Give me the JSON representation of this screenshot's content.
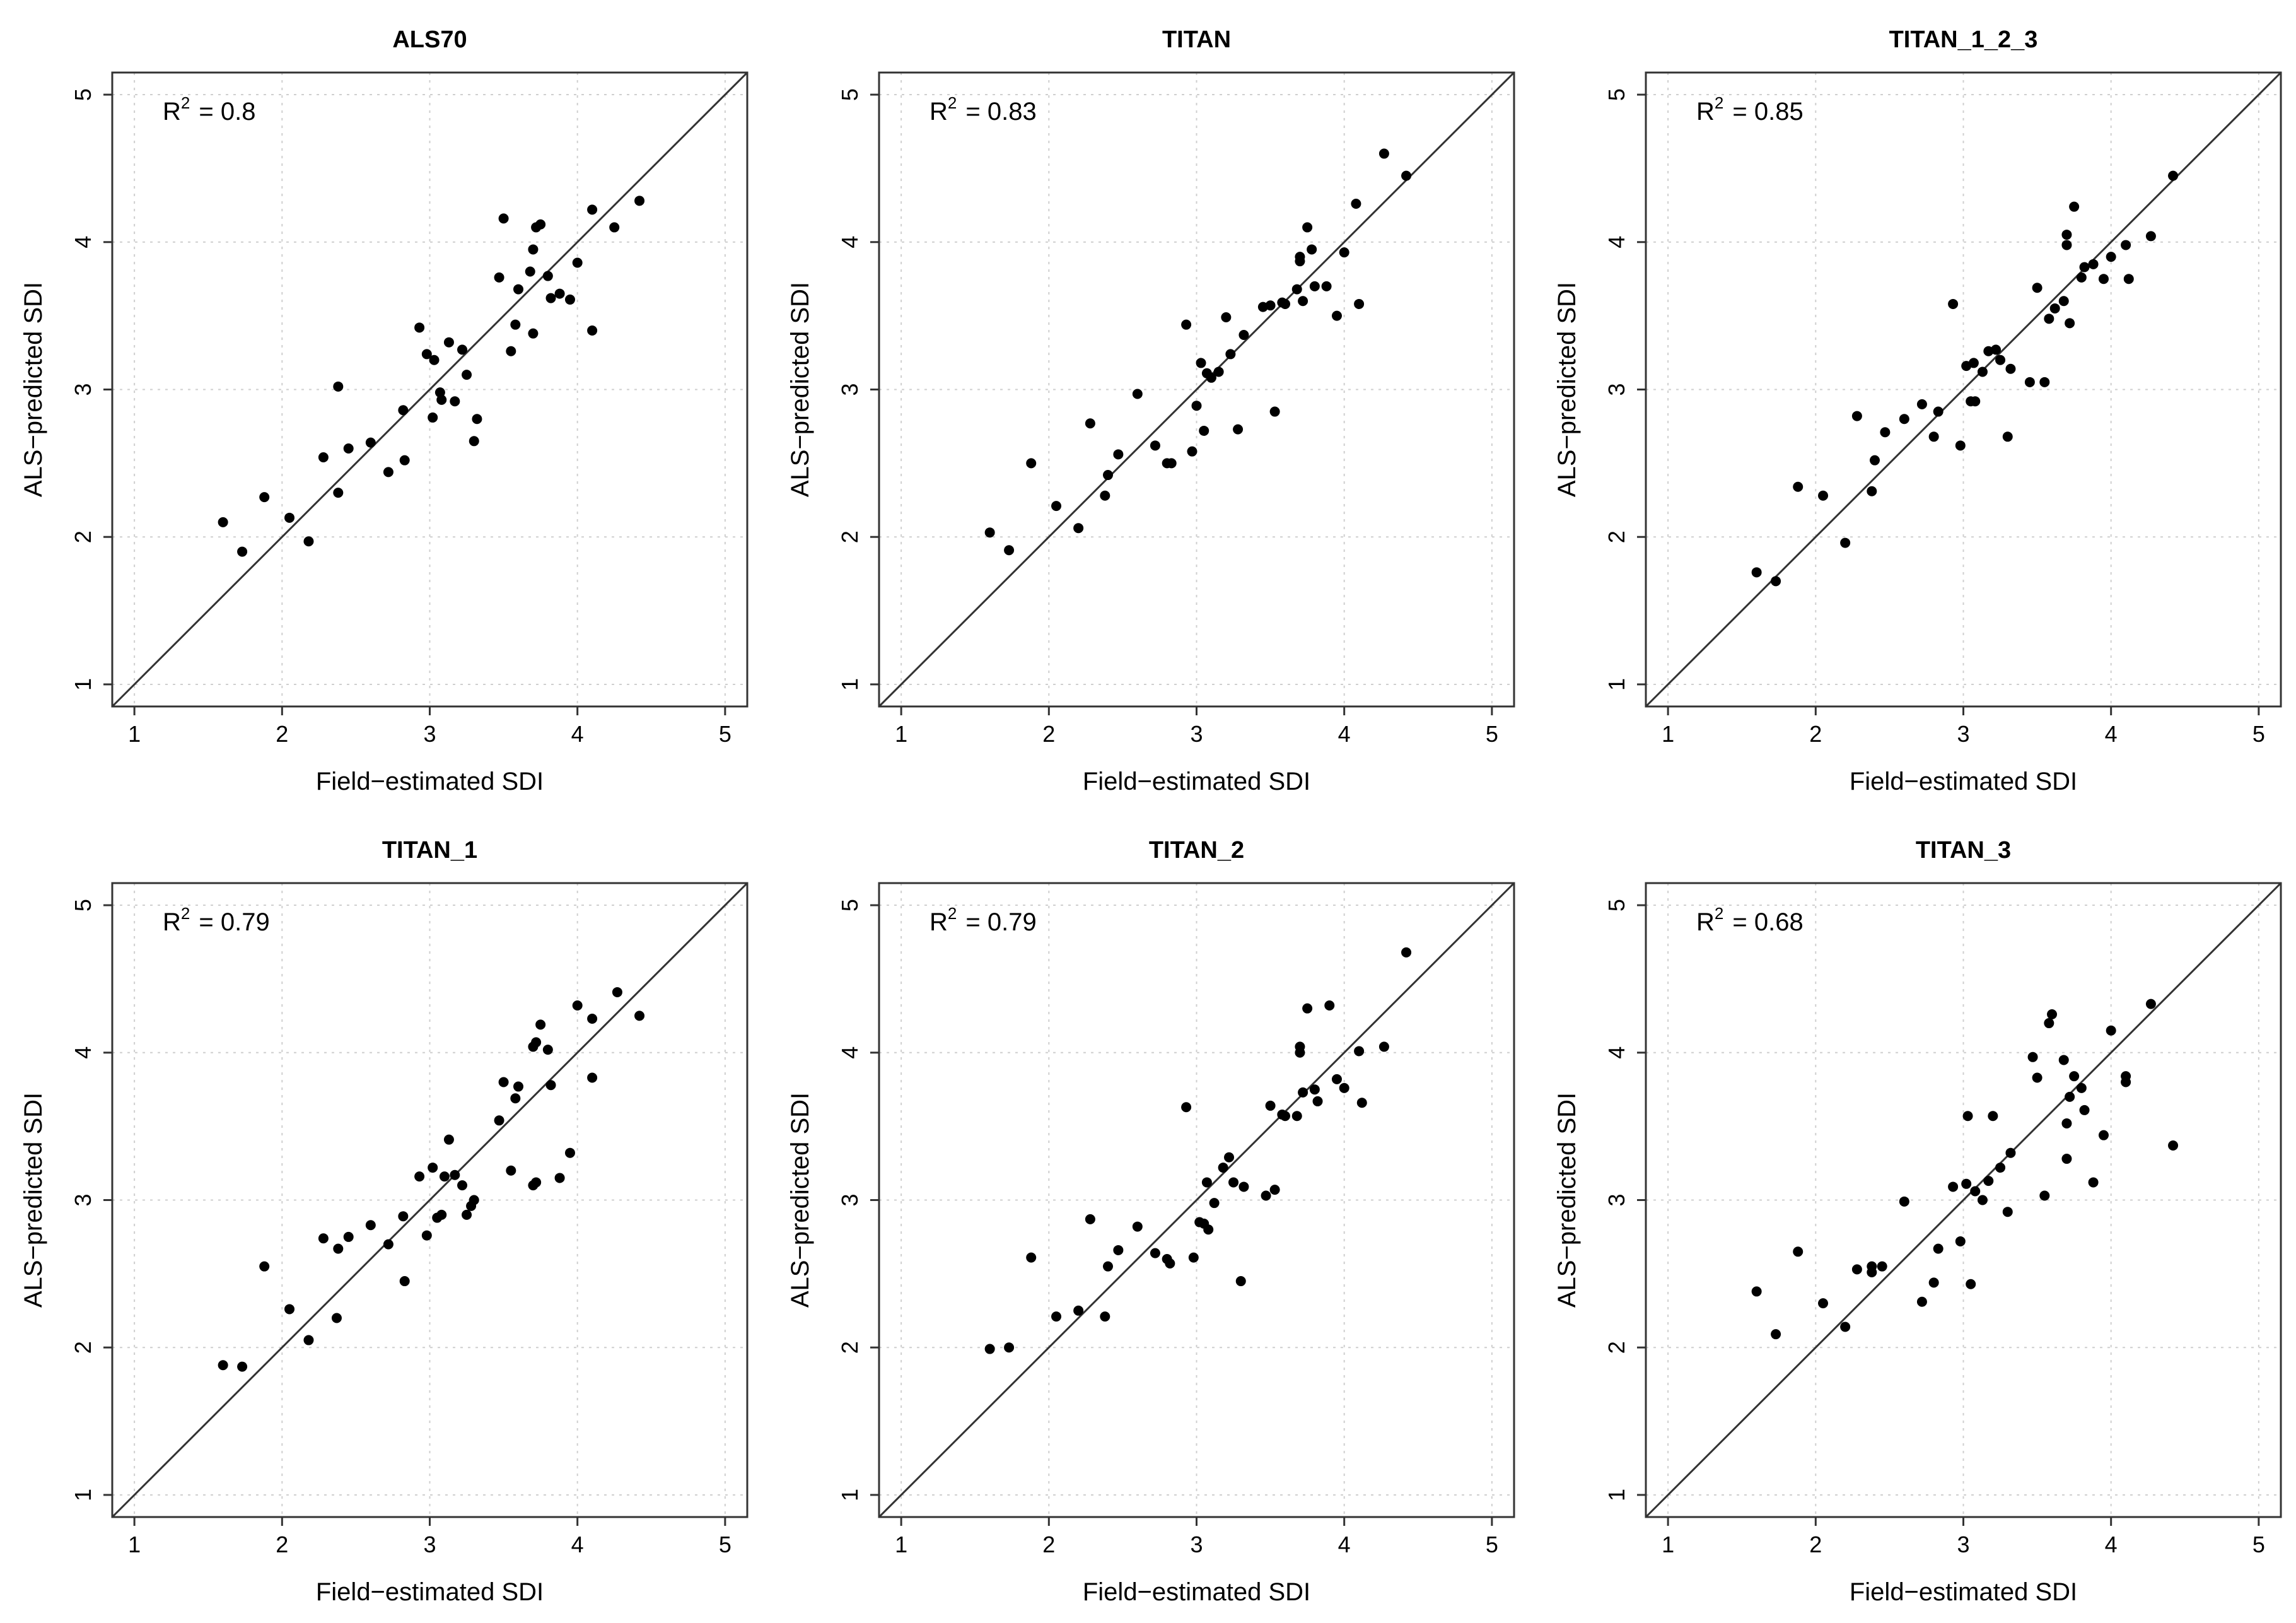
{
  "chart_data": [
    {
      "type": "scatter",
      "title": "ALS70",
      "xlabel": "Field−estimated SDI",
      "ylabel": "ALS−predicted SDI",
      "xlim": [
        0.85,
        5.15
      ],
      "ylim": [
        0.85,
        5.15
      ],
      "xticks": [
        "1",
        "2",
        "3",
        "4",
        "5"
      ],
      "yticks": [
        "1",
        "2",
        "3",
        "4",
        "5"
      ],
      "grid": true,
      "reference_line": "1:1",
      "r2_label": "R",
      "r2_sup": "2",
      "r2_value": "=  0.8",
      "points": [
        [
          1.6,
          2.1
        ],
        [
          1.73,
          1.9
        ],
        [
          1.88,
          2.27
        ],
        [
          2.05,
          2.13
        ],
        [
          2.18,
          1.97
        ],
        [
          2.28,
          2.54
        ],
        [
          2.38,
          2.3
        ],
        [
          2.38,
          3.02
        ],
        [
          2.45,
          2.6
        ],
        [
          2.6,
          2.64
        ],
        [
          2.72,
          2.44
        ],
        [
          2.82,
          2.86
        ],
        [
          2.83,
          2.52
        ],
        [
          2.93,
          3.42
        ],
        [
          2.98,
          3.24
        ],
        [
          3.02,
          2.81
        ],
        [
          3.03,
          3.2
        ],
        [
          3.07,
          2.98
        ],
        [
          3.08,
          2.93
        ],
        [
          3.13,
          3.32
        ],
        [
          3.17,
          2.92
        ],
        [
          3.22,
          3.27
        ],
        [
          3.25,
          3.1
        ],
        [
          3.3,
          2.65
        ],
        [
          3.32,
          2.8
        ],
        [
          3.47,
          3.76
        ],
        [
          3.5,
          4.16
        ],
        [
          3.55,
          3.26
        ],
        [
          3.58,
          3.44
        ],
        [
          3.6,
          3.68
        ],
        [
          3.68,
          3.8
        ],
        [
          3.7,
          3.38
        ],
        [
          3.7,
          3.95
        ],
        [
          3.72,
          4.1
        ],
        [
          3.75,
          4.12
        ],
        [
          3.8,
          3.77
        ],
        [
          3.82,
          3.62
        ],
        [
          3.88,
          3.65
        ],
        [
          3.95,
          3.61
        ],
        [
          4.0,
          3.86
        ],
        [
          4.1,
          3.4
        ],
        [
          4.1,
          4.22
        ],
        [
          4.25,
          4.1
        ],
        [
          4.42,
          4.28
        ]
      ]
    },
    {
      "type": "scatter",
      "title": "TITAN",
      "xlabel": "Field−estimated SDI",
      "ylabel": "ALS−predicted SDI",
      "xlim": [
        0.85,
        5.15
      ],
      "ylim": [
        0.85,
        5.15
      ],
      "xticks": [
        "1",
        "2",
        "3",
        "4",
        "5"
      ],
      "yticks": [
        "1",
        "2",
        "3",
        "4",
        "5"
      ],
      "grid": true,
      "reference_line": "1:1",
      "r2_label": "R",
      "r2_sup": "2",
      "r2_value": "=  0.83",
      "points": [
        [
          1.6,
          2.03
        ],
        [
          1.73,
          1.91
        ],
        [
          1.88,
          2.5
        ],
        [
          2.05,
          2.21
        ],
        [
          2.2,
          2.06
        ],
        [
          2.28,
          2.77
        ],
        [
          2.38,
          2.28
        ],
        [
          2.4,
          2.42
        ],
        [
          2.47,
          2.56
        ],
        [
          2.6,
          2.97
        ],
        [
          2.72,
          2.62
        ],
        [
          2.8,
          2.5
        ],
        [
          2.83,
          2.5
        ],
        [
          2.93,
          3.44
        ],
        [
          2.97,
          2.58
        ],
        [
          3.0,
          2.89
        ],
        [
          3.03,
          3.18
        ],
        [
          3.05,
          2.72
        ],
        [
          3.07,
          3.11
        ],
        [
          3.1,
          3.08
        ],
        [
          3.15,
          3.12
        ],
        [
          3.2,
          3.49
        ],
        [
          3.23,
          3.24
        ],
        [
          3.28,
          2.73
        ],
        [
          3.32,
          3.37
        ],
        [
          3.45,
          3.56
        ],
        [
          3.5,
          3.57
        ],
        [
          3.53,
          2.85
        ],
        [
          3.58,
          3.59
        ],
        [
          3.6,
          3.58
        ],
        [
          3.68,
          3.68
        ],
        [
          3.7,
          3.9
        ],
        [
          3.7,
          3.87
        ],
        [
          3.72,
          3.6
        ],
        [
          3.75,
          4.1
        ],
        [
          3.8,
          3.7
        ],
        [
          3.88,
          3.7
        ],
        [
          3.95,
          3.5
        ],
        [
          4.0,
          3.93
        ],
        [
          4.08,
          4.26
        ],
        [
          4.1,
          3.58
        ],
        [
          4.27,
          4.6
        ],
        [
          4.42,
          4.45
        ],
        [
          3.78,
          3.95
        ]
      ]
    },
    {
      "type": "scatter",
      "title": "TITAN_1_2_3",
      "xlabel": "Field−estimated SDI",
      "ylabel": "ALS−predicted SDI",
      "xlim": [
        0.85,
        5.15
      ],
      "ylim": [
        0.85,
        5.15
      ],
      "xticks": [
        "1",
        "2",
        "3",
        "4",
        "5"
      ],
      "yticks": [
        "1",
        "2",
        "3",
        "4",
        "5"
      ],
      "grid": true,
      "reference_line": "1:1",
      "r2_label": "R",
      "r2_sup": "2",
      "r2_value": "=  0.85",
      "points": [
        [
          1.6,
          1.76
        ],
        [
          1.73,
          1.7
        ],
        [
          1.88,
          2.34
        ],
        [
          2.05,
          2.28
        ],
        [
          2.2,
          1.96
        ],
        [
          2.28,
          2.82
        ],
        [
          2.38,
          2.31
        ],
        [
          2.4,
          2.52
        ],
        [
          2.47,
          2.71
        ],
        [
          2.6,
          2.8
        ],
        [
          2.72,
          2.9
        ],
        [
          2.8,
          2.68
        ],
        [
          2.83,
          2.85
        ],
        [
          2.93,
          3.58
        ],
        [
          2.98,
          2.62
        ],
        [
          3.02,
          3.16
        ],
        [
          3.05,
          2.92
        ],
        [
          3.07,
          3.18
        ],
        [
          3.08,
          2.92
        ],
        [
          3.13,
          3.12
        ],
        [
          3.17,
          3.26
        ],
        [
          3.22,
          3.27
        ],
        [
          3.25,
          3.2
        ],
        [
          3.3,
          2.68
        ],
        [
          3.32,
          3.14
        ],
        [
          3.45,
          3.05
        ],
        [
          3.5,
          3.69
        ],
        [
          3.55,
          3.05
        ],
        [
          3.58,
          3.48
        ],
        [
          3.62,
          3.55
        ],
        [
          3.68,
          3.6
        ],
        [
          3.7,
          3.98
        ],
        [
          3.7,
          4.05
        ],
        [
          3.72,
          3.45
        ],
        [
          3.75,
          4.24
        ],
        [
          3.8,
          3.76
        ],
        [
          3.82,
          3.83
        ],
        [
          3.88,
          3.85
        ],
        [
          3.95,
          3.75
        ],
        [
          4.0,
          3.9
        ],
        [
          4.1,
          3.98
        ],
        [
          4.12,
          3.75
        ],
        [
          4.27,
          4.04
        ],
        [
          4.42,
          4.45
        ]
      ]
    },
    {
      "type": "scatter",
      "title": "TITAN_1",
      "xlabel": "Field−estimated SDI",
      "ylabel": "ALS−predicted SDI",
      "xlim": [
        0.85,
        5.15
      ],
      "ylim": [
        0.85,
        5.15
      ],
      "xticks": [
        "1",
        "2",
        "3",
        "4",
        "5"
      ],
      "yticks": [
        "1",
        "2",
        "3",
        "4",
        "5"
      ],
      "grid": true,
      "reference_line": "1:1",
      "r2_label": "R",
      "r2_sup": "2",
      "r2_value": "=  0.79",
      "points": [
        [
          1.6,
          1.88
        ],
        [
          1.73,
          1.87
        ],
        [
          1.88,
          2.55
        ],
        [
          2.05,
          2.26
        ],
        [
          2.18,
          2.05
        ],
        [
          2.28,
          2.74
        ],
        [
          2.37,
          2.2
        ],
        [
          2.38,
          2.67
        ],
        [
          2.45,
          2.75
        ],
        [
          2.6,
          2.83
        ],
        [
          2.72,
          2.7
        ],
        [
          2.82,
          2.89
        ],
        [
          2.83,
          2.45
        ],
        [
          2.93,
          3.16
        ],
        [
          2.98,
          2.76
        ],
        [
          3.02,
          3.22
        ],
        [
          3.05,
          2.88
        ],
        [
          3.08,
          2.9
        ],
        [
          3.1,
          3.16
        ],
        [
          3.13,
          3.41
        ],
        [
          3.17,
          3.17
        ],
        [
          3.22,
          3.1
        ],
        [
          3.25,
          2.9
        ],
        [
          3.3,
          3.0
        ],
        [
          3.28,
          2.96
        ],
        [
          3.47,
          3.54
        ],
        [
          3.5,
          3.8
        ],
        [
          3.55,
          3.2
        ],
        [
          3.58,
          3.69
        ],
        [
          3.6,
          3.77
        ],
        [
          3.7,
          4.04
        ],
        [
          3.7,
          3.1
        ],
        [
          3.72,
          4.07
        ],
        [
          3.72,
          3.12
        ],
        [
          3.75,
          4.19
        ],
        [
          3.8,
          4.02
        ],
        [
          3.82,
          3.78
        ],
        [
          3.88,
          3.15
        ],
        [
          3.95,
          3.32
        ],
        [
          4.0,
          4.32
        ],
        [
          4.1,
          4.23
        ],
        [
          4.1,
          3.83
        ],
        [
          4.27,
          4.41
        ],
        [
          4.42,
          4.25
        ]
      ]
    },
    {
      "type": "scatter",
      "title": "TITAN_2",
      "xlabel": "Field−estimated SDI",
      "ylabel": "ALS−predicted SDI",
      "xlim": [
        0.85,
        5.15
      ],
      "ylim": [
        0.85,
        5.15
      ],
      "xticks": [
        "1",
        "2",
        "3",
        "4",
        "5"
      ],
      "yticks": [
        "1",
        "2",
        "3",
        "4",
        "5"
      ],
      "grid": true,
      "reference_line": "1:1",
      "r2_label": "R",
      "r2_sup": "2",
      "r2_value": "=  0.79",
      "points": [
        [
          1.6,
          1.99
        ],
        [
          1.73,
          2.0
        ],
        [
          1.88,
          2.61
        ],
        [
          2.05,
          2.21
        ],
        [
          2.2,
          2.25
        ],
        [
          2.28,
          2.87
        ],
        [
          2.38,
          2.21
        ],
        [
          2.4,
          2.55
        ],
        [
          2.47,
          2.66
        ],
        [
          2.6,
          2.82
        ],
        [
          2.72,
          2.64
        ],
        [
          2.8,
          2.6
        ],
        [
          2.82,
          2.57
        ],
        [
          2.93,
          3.63
        ],
        [
          2.98,
          2.61
        ],
        [
          3.02,
          2.85
        ],
        [
          3.05,
          2.84
        ],
        [
          3.07,
          3.12
        ],
        [
          3.08,
          2.8
        ],
        [
          3.12,
          2.98
        ],
        [
          3.18,
          3.22
        ],
        [
          3.22,
          3.29
        ],
        [
          3.25,
          3.12
        ],
        [
          3.3,
          2.45
        ],
        [
          3.32,
          3.09
        ],
        [
          3.47,
          3.03
        ],
        [
          3.5,
          3.64
        ],
        [
          3.53,
          3.07
        ],
        [
          3.58,
          3.58
        ],
        [
          3.6,
          3.57
        ],
        [
          3.68,
          3.57
        ],
        [
          3.7,
          4.04
        ],
        [
          3.7,
          4.0
        ],
        [
          3.72,
          3.73
        ],
        [
          3.75,
          4.3
        ],
        [
          3.8,
          3.75
        ],
        [
          3.82,
          3.67
        ],
        [
          3.9,
          4.32
        ],
        [
          3.95,
          3.82
        ],
        [
          4.0,
          3.76
        ],
        [
          4.1,
          4.01
        ],
        [
          4.12,
          3.66
        ],
        [
          4.27,
          4.04
        ],
        [
          4.42,
          4.68
        ]
      ]
    },
    {
      "type": "scatter",
      "title": "TITAN_3",
      "xlabel": "Field−estimated SDI",
      "ylabel": "ALS−predicted SDI",
      "xlim": [
        0.85,
        5.15
      ],
      "ylim": [
        0.85,
        5.15
      ],
      "xticks": [
        "1",
        "2",
        "3",
        "4",
        "5"
      ],
      "yticks": [
        "1",
        "2",
        "3",
        "4",
        "5"
      ],
      "grid": true,
      "reference_line": "1:1",
      "r2_label": "R",
      "r2_sup": "2",
      "r2_value": "=  0.68",
      "points": [
        [
          1.6,
          2.38
        ],
        [
          1.73,
          2.09
        ],
        [
          1.88,
          2.65
        ],
        [
          2.05,
          2.3
        ],
        [
          2.2,
          2.14
        ],
        [
          2.28,
          2.53
        ],
        [
          2.38,
          2.51
        ],
        [
          2.38,
          2.55
        ],
        [
          2.45,
          2.55
        ],
        [
          2.6,
          2.99
        ],
        [
          2.72,
          2.31
        ],
        [
          2.8,
          2.44
        ],
        [
          2.83,
          2.67
        ],
        [
          2.93,
          3.09
        ],
        [
          2.98,
          2.72
        ],
        [
          3.02,
          3.11
        ],
        [
          3.03,
          3.57
        ],
        [
          3.05,
          2.43
        ],
        [
          3.08,
          3.06
        ],
        [
          3.13,
          3.0
        ],
        [
          3.17,
          3.13
        ],
        [
          3.2,
          3.57
        ],
        [
          3.25,
          3.22
        ],
        [
          3.3,
          2.92
        ],
        [
          3.32,
          3.32
        ],
        [
          3.47,
          3.97
        ],
        [
          3.5,
          3.83
        ],
        [
          3.55,
          3.03
        ],
        [
          3.58,
          4.2
        ],
        [
          3.6,
          4.26
        ],
        [
          3.68,
          3.95
        ],
        [
          3.7,
          3.28
        ],
        [
          3.7,
          3.52
        ],
        [
          3.72,
          3.7
        ],
        [
          3.75,
          3.84
        ],
        [
          3.8,
          3.76
        ],
        [
          3.82,
          3.61
        ],
        [
          3.88,
          3.12
        ],
        [
          3.95,
          3.44
        ],
        [
          4.0,
          4.15
        ],
        [
          4.1,
          3.8
        ],
        [
          4.1,
          3.84
        ],
        [
          4.27,
          4.33
        ],
        [
          4.42,
          3.37
        ]
      ]
    }
  ]
}
